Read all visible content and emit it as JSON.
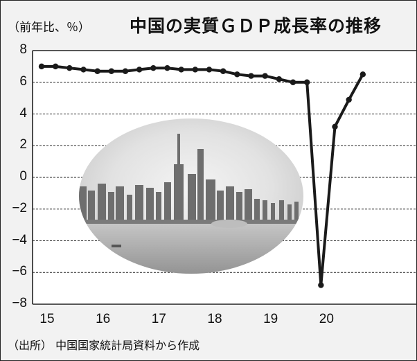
{
  "chart_data": {
    "type": "line",
    "title": "中国の実質ＧＤＰ成長率の推移",
    "ylabel": "（前年比、％）",
    "source": "（出所） 中国国家統計局資料から作成",
    "ylim": [
      -8,
      8
    ],
    "yticks": [
      8,
      6,
      4,
      2,
      0,
      -2,
      -4,
      -6,
      -8
    ],
    "ytick_labels": [
      "8",
      "6",
      "4",
      "2",
      "0",
      "−2",
      "−4",
      "−6",
      "−8"
    ],
    "xlim": [
      2015.0,
      2021.0
    ],
    "xticks": [
      {
        "value": 2015.0,
        "label": "15"
      },
      {
        "value": 2016.0,
        "label": "16"
      },
      {
        "value": 2017.0,
        "label": "17"
      },
      {
        "value": 2018.0,
        "label": "18"
      },
      {
        "value": 2019.0,
        "label": "19"
      },
      {
        "value": 2020.0,
        "label": "20"
      }
    ],
    "grid": true,
    "series": [
      {
        "color": "#1a1a1a",
        "points": [
          {
            "x": 2015.0,
            "y": 7.0
          },
          {
            "x": 2015.25,
            "y": 7.0
          },
          {
            "x": 2015.5,
            "y": 6.9
          },
          {
            "x": 2015.75,
            "y": 6.8
          },
          {
            "x": 2016.0,
            "y": 6.7
          },
          {
            "x": 2016.25,
            "y": 6.7
          },
          {
            "x": 2016.5,
            "y": 6.7
          },
          {
            "x": 2016.75,
            "y": 6.8
          },
          {
            "x": 2017.0,
            "y": 6.9
          },
          {
            "x": 2017.25,
            "y": 6.9
          },
          {
            "x": 2017.5,
            "y": 6.8
          },
          {
            "x": 2017.75,
            "y": 6.8
          },
          {
            "x": 2018.0,
            "y": 6.8
          },
          {
            "x": 2018.25,
            "y": 6.7
          },
          {
            "x": 2018.5,
            "y": 6.5
          },
          {
            "x": 2018.75,
            "y": 6.4
          },
          {
            "x": 2019.0,
            "y": 6.4
          },
          {
            "x": 2019.25,
            "y": 6.2
          },
          {
            "x": 2019.5,
            "y": 6.0
          },
          {
            "x": 2019.75,
            "y": 6.0
          },
          {
            "x": 2020.0,
            "y": -6.8
          },
          {
            "x": 2020.25,
            "y": 3.2
          },
          {
            "x": 2020.5,
            "y": 4.9
          },
          {
            "x": 2020.75,
            "y": 6.5
          }
        ]
      }
    ]
  }
}
